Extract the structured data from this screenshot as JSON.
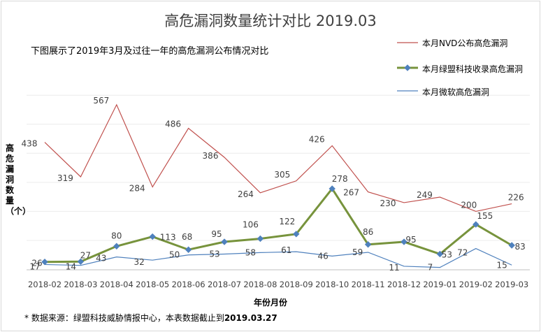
{
  "chart_data": {
    "type": "line",
    "title": "高危漏洞数量统计对比 2019.03",
    "subtitle": "下图展示了2019年3月及过往一年的高危漏洞公布情况对比",
    "xlabel": "年份月份",
    "ylabel": "高危漏洞数量（个）",
    "categories": [
      "2018-02",
      "2018-03",
      "2018-04",
      "2018-05",
      "2018-06",
      "2018-07",
      "2018-08",
      "2018-09",
      "2018-10",
      "2018-11",
      "2018-12",
      "2019-01",
      "2019-02",
      "2019-03"
    ],
    "ylim": [
      0,
      600
    ],
    "grid": true,
    "legend_position": "top-right",
    "series": [
      {
        "name": "本月NVD公布高危漏洞",
        "color": "#c0504d",
        "values": [
          438,
          319,
          567,
          284,
          486,
          386,
          264,
          305,
          426,
          267,
          230,
          249,
          200,
          226
        ]
      },
      {
        "name": "本月绿盟科技收录高危漏洞",
        "color": "#77933c",
        "marker_color": "#4f81bd",
        "values": [
          26,
          27,
          80,
          113,
          68,
          95,
          106,
          122,
          278,
          86,
          95,
          53,
          155,
          83
        ]
      },
      {
        "name": "本月微软高危漏洞",
        "color": "#4f81bd",
        "values": [
          17,
          14,
          43,
          32,
          50,
          53,
          58,
          61,
          46,
          59,
          11,
          7,
          72,
          15
        ]
      }
    ]
  },
  "footnote": {
    "prefix": "* 数据来源：绿盟科技威胁情报中心，本表数据截止到",
    "date": "2019.03.27"
  }
}
